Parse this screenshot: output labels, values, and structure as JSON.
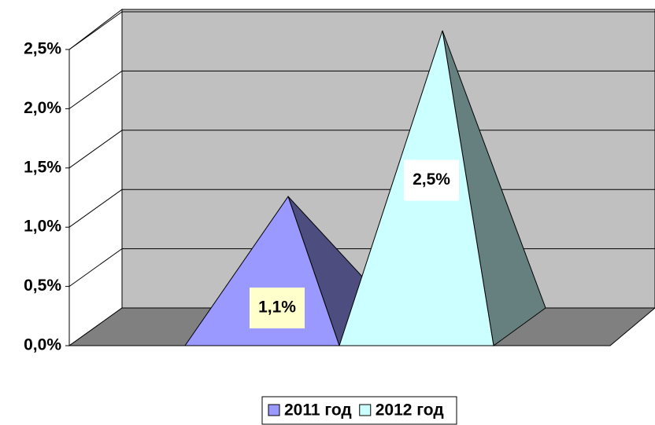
{
  "chart_data": {
    "type": "pyramid3d",
    "categories": [
      null
    ],
    "series": [
      {
        "name": "2011 год",
        "color": "#9999ff",
        "side_color": "#4d4d80",
        "label_bg": "#ffffcc",
        "values": [
          1.1
        ],
        "value_labels": [
          "1,1%"
        ]
      },
      {
        "name": "2012 год",
        "color": "#ccffff",
        "side_color": "#668080",
        "label_bg": "#ffffff",
        "values": [
          2.5
        ],
        "value_labels": [
          "2,5%"
        ]
      }
    ],
    "ylim": [
      0,
      2.5
    ],
    "yticks": [
      {
        "value": 0,
        "label": "0,0%"
      },
      {
        "value": 0.5,
        "label": "0,5%"
      },
      {
        "value": 1,
        "label": "1,0%"
      },
      {
        "value": 1.5,
        "label": "1,5%"
      },
      {
        "value": 2,
        "label": "2,0%"
      },
      {
        "value": 2.5,
        "label": "2,5%"
      }
    ],
    "grid": true,
    "legend": "bottom"
  }
}
